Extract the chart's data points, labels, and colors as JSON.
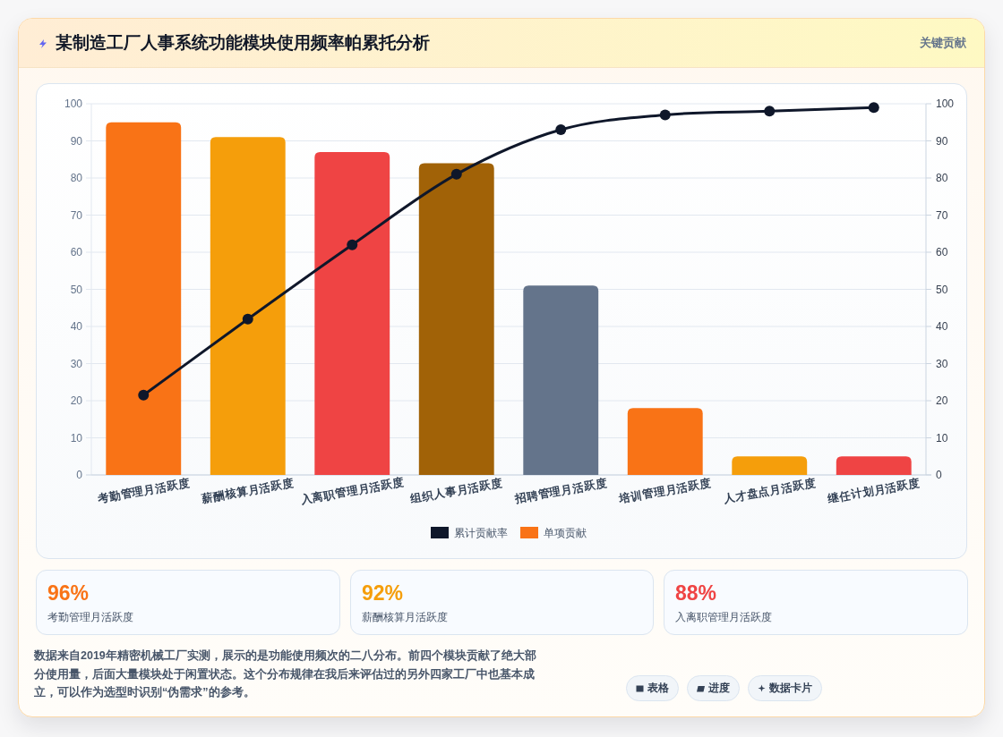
{
  "chart_data": [
    {
      "type": "bar",
      "title": "某制造工厂人事系统功能模块使用频率帕累托分析",
      "categories": [
        "考勤管理月活跃度",
        "薪酬核算月活跃度",
        "入离职管理月活跃度",
        "组织人事月活跃度",
        "招聘管理月活跃度",
        "培训管理月活跃度",
        "人才盘点月活跃度",
        "继任计划月活跃度"
      ],
      "series": [
        {
          "name": "累计贡献率",
          "type": "line",
          "color": "#0f172a",
          "marker": "circle",
          "line_style": "solid",
          "values": [
            21.5,
            42,
            62,
            81,
            93,
            97,
            98,
            99
          ]
        },
        {
          "name": "单项贡献",
          "type": "bar",
          "color": "#f97316",
          "colors": [
            "#f97316",
            "#f59e0b",
            "#ef4444",
            "#a16207",
            "#64748b",
            "#f97316",
            "#f59e0b",
            "#ef4444"
          ],
          "values": [
            95,
            91,
            87,
            84,
            51,
            18,
            5,
            5
          ]
        }
      ],
      "ylim": [
        0,
        100
      ],
      "yticks": [
        0,
        10,
        20,
        30,
        40,
        50,
        60,
        70,
        80,
        90,
        100
      ],
      "y2lim": [
        0,
        100
      ],
      "y2ticks": [
        0,
        10,
        20,
        30,
        40,
        50,
        60,
        70,
        80,
        90,
        100
      ],
      "grid": "y",
      "legend": "bottom",
      "annotations": [
        "关键贡献",
        "数据来自2019年精密机械工厂实测，展示的是功能使用频次的二八分布。前四个模块贡献了绝大部分使用量，后面大量模块处于闲置状态。这个分布规律在我后来评估过的另外四家工厂中也基本成立，可以作为选型时识别“伪需求”的参考。"
      ]
    },
    {
      "type": "other",
      "categories": [
        "考勤管理月活跃度",
        "薪酬核算月活跃度",
        "入离职管理月活跃度"
      ],
      "value_labels": [
        "96%",
        "92%",
        "88%"
      ],
      "annotations": [
        "表格",
        "进度",
        "数据卡片"
      ]
    }
  ]
}
